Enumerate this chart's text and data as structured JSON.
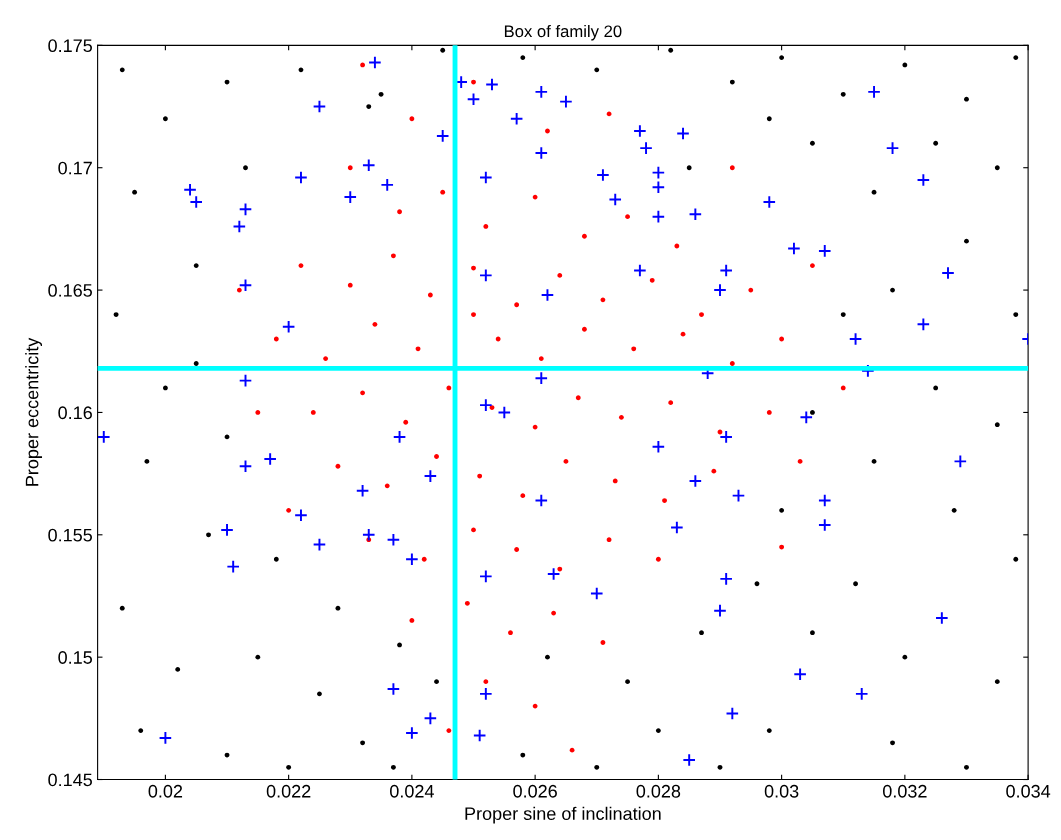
{
  "chart_data": {
    "type": "scatter",
    "title": "Box of family 20",
    "xlabel": "Proper sine of inclination",
    "ylabel": "Proper eccentricity",
    "xlim": [
      0.0189,
      0.034
    ],
    "xticks": [
      0.02,
      0.022,
      0.024,
      0.026,
      0.028,
      0.03,
      0.032,
      0.034
    ],
    "ylim": [
      0.145,
      0.175
    ],
    "yticks": [
      0.145,
      0.15,
      0.155,
      0.16,
      0.165,
      0.17,
      0.175
    ],
    "grid": false,
    "legend": false,
    "ref_lines": [
      {
        "axis": "x",
        "value": 0.0247,
        "color": "#00ffff"
      },
      {
        "axis": "y",
        "value": 0.1618,
        "color": "#00ffff"
      }
    ],
    "series": [
      {
        "color": "#000000",
        "marker": "circle",
        "x": [
          0.0193,
          0.02,
          0.021,
          0.0195,
          0.0205,
          0.0192,
          0.02,
          0.0197,
          0.0207,
          0.0193,
          0.0202,
          0.0196,
          0.021,
          0.022,
          0.0215,
          0.0225,
          0.0232,
          0.0228,
          0.0218,
          0.021,
          0.0205,
          0.0213,
          0.0222,
          0.0235,
          0.0245,
          0.0258,
          0.027,
          0.0282,
          0.0292,
          0.03,
          0.031,
          0.032,
          0.033,
          0.0338,
          0.0335,
          0.0325,
          0.0315,
          0.0305,
          0.0298,
          0.033,
          0.0318,
          0.0338,
          0.031,
          0.0325,
          0.0335,
          0.0315,
          0.0305,
          0.0328,
          0.0338,
          0.0312,
          0.032,
          0.0335,
          0.0305,
          0.0298,
          0.0318,
          0.033,
          0.029,
          0.028,
          0.0275,
          0.0287,
          0.027,
          0.0258,
          0.0244,
          0.0238,
          0.0296,
          0.0262,
          0.0237,
          0.03,
          0.0285,
          0.0233
        ],
        "values": [
          0.174,
          0.172,
          0.1735,
          0.169,
          0.166,
          0.164,
          0.161,
          0.158,
          0.155,
          0.152,
          0.1495,
          0.147,
          0.146,
          0.1455,
          0.15,
          0.1485,
          0.1465,
          0.152,
          0.154,
          0.159,
          0.162,
          0.17,
          0.174,
          0.173,
          0.1748,
          0.1745,
          0.174,
          0.1748,
          0.1735,
          0.1745,
          0.173,
          0.1742,
          0.1728,
          0.1745,
          0.17,
          0.171,
          0.169,
          0.171,
          0.172,
          0.167,
          0.165,
          0.164,
          0.164,
          0.161,
          0.1595,
          0.158,
          0.16,
          0.156,
          0.154,
          0.153,
          0.15,
          0.149,
          0.151,
          0.147,
          0.1465,
          0.1455,
          0.1455,
          0.147,
          0.149,
          0.151,
          0.1455,
          0.146,
          0.149,
          0.1505,
          0.153,
          0.15,
          0.1455,
          0.156,
          0.17,
          0.1725
        ]
      },
      {
        "color": "#ff0000",
        "marker": "circle",
        "x": [
          0.023,
          0.0238,
          0.0245,
          0.0252,
          0.026,
          0.0268,
          0.0275,
          0.0283,
          0.0222,
          0.023,
          0.0237,
          0.0243,
          0.025,
          0.0257,
          0.0264,
          0.0271,
          0.0279,
          0.0287,
          0.0295,
          0.0218,
          0.0226,
          0.0234,
          0.0241,
          0.025,
          0.0254,
          0.0261,
          0.0268,
          0.0276,
          0.0284,
          0.0292,
          0.03,
          0.0224,
          0.0232,
          0.0239,
          0.0246,
          0.0253,
          0.026,
          0.0267,
          0.0274,
          0.0282,
          0.029,
          0.0298,
          0.0228,
          0.0236,
          0.0244,
          0.0251,
          0.0258,
          0.0265,
          0.0273,
          0.0281,
          0.0289,
          0.0233,
          0.0242,
          0.025,
          0.0257,
          0.0264,
          0.0272,
          0.028,
          0.024,
          0.0249,
          0.0256,
          0.0263,
          0.0271,
          0.0252,
          0.026,
          0.0246,
          0.0266,
          0.024,
          0.025,
          0.0262,
          0.0272,
          0.0232,
          0.0212,
          0.0215,
          0.0305,
          0.031,
          0.0303,
          0.03,
          0.022,
          0.0292
        ],
        "values": [
          0.17,
          0.1682,
          0.169,
          0.1676,
          0.1688,
          0.1672,
          0.168,
          0.1668,
          0.166,
          0.1652,
          0.1664,
          0.1648,
          0.1659,
          0.1644,
          0.1656,
          0.1646,
          0.1654,
          0.164,
          0.165,
          0.163,
          0.1622,
          0.1636,
          0.1626,
          0.164,
          0.163,
          0.1622,
          0.1634,
          0.1626,
          0.1632,
          0.162,
          0.163,
          0.16,
          0.1608,
          0.1596,
          0.161,
          0.1602,
          0.1594,
          0.1606,
          0.1598,
          0.1604,
          0.1592,
          0.16,
          0.1578,
          0.157,
          0.1582,
          0.1574,
          0.1566,
          0.158,
          0.1572,
          0.1564,
          0.1576,
          0.1548,
          0.154,
          0.1552,
          0.1544,
          0.1536,
          0.1548,
          0.154,
          0.1515,
          0.1522,
          0.151,
          0.1518,
          0.1506,
          0.149,
          0.148,
          0.147,
          0.1462,
          0.172,
          0.1735,
          0.1715,
          0.1722,
          0.1742,
          0.165,
          0.16,
          0.166,
          0.161,
          0.158,
          0.1545,
          0.156,
          0.17
        ]
      },
      {
        "color": "#0000ff",
        "marker": "cross",
        "x": [
          0.019,
          0.02,
          0.0204,
          0.0205,
          0.0212,
          0.0213,
          0.0213,
          0.0213,
          0.021,
          0.0211,
          0.0213,
          0.0217,
          0.022,
          0.0222,
          0.0222,
          0.0225,
          0.0225,
          0.0234,
          0.0233,
          0.023,
          0.0236,
          0.0232,
          0.0233,
          0.0237,
          0.0238,
          0.024,
          0.0237,
          0.024,
          0.0243,
          0.0243,
          0.0245,
          0.0248,
          0.025,
          0.0253,
          0.0257,
          0.0261,
          0.0265,
          0.0252,
          0.0261,
          0.0252,
          0.0262,
          0.0261,
          0.0255,
          0.0252,
          0.0252,
          0.0263,
          0.0261,
          0.0251,
          0.0252,
          0.027,
          0.0271,
          0.0273,
          0.0277,
          0.0277,
          0.0278,
          0.028,
          0.028,
          0.028,
          0.0284,
          0.0286,
          0.028,
          0.0286,
          0.0283,
          0.029,
          0.0291,
          0.0285,
          0.0291,
          0.029,
          0.0288,
          0.0291,
          0.0293,
          0.0292,
          0.0298,
          0.0302,
          0.0307,
          0.0307,
          0.0307,
          0.0304,
          0.0303,
          0.0313,
          0.0315,
          0.0318,
          0.0323,
          0.0323,
          0.0314,
          0.0312,
          0.0327,
          0.0329,
          0.0326,
          0.034
        ],
        "values": [
          0.159,
          0.1467,
          0.1691,
          0.1686,
          0.1676,
          0.1683,
          0.1652,
          0.1613,
          0.1552,
          0.1537,
          0.1578,
          0.1581,
          0.1635,
          0.1696,
          0.1558,
          0.1546,
          0.1725,
          0.1743,
          0.1701,
          0.1688,
          0.1693,
          0.1568,
          0.155,
          0.1548,
          0.159,
          0.154,
          0.1487,
          0.1469,
          0.1475,
          0.1574,
          0.1713,
          0.1735,
          0.1728,
          0.1734,
          0.172,
          0.1731,
          0.1727,
          0.1696,
          0.1706,
          0.1656,
          0.1648,
          0.1614,
          0.16,
          0.1603,
          0.1533,
          0.1534,
          0.1564,
          0.1468,
          0.1485,
          0.1526,
          0.1697,
          0.1687,
          0.1658,
          0.1715,
          0.1708,
          0.1692,
          0.168,
          0.1698,
          0.1714,
          0.1681,
          0.1586,
          0.1572,
          0.1553,
          0.1519,
          0.1532,
          0.1458,
          0.1658,
          0.165,
          0.1616,
          0.159,
          0.1566,
          0.1477,
          0.1686,
          0.1667,
          0.1666,
          0.1564,
          0.1554,
          0.1598,
          0.1493,
          0.1485,
          0.1731,
          0.1708,
          0.1695,
          0.1636,
          0.1617,
          0.163,
          0.1657,
          0.158,
          0.1516,
          0.163
        ]
      }
    ]
  }
}
